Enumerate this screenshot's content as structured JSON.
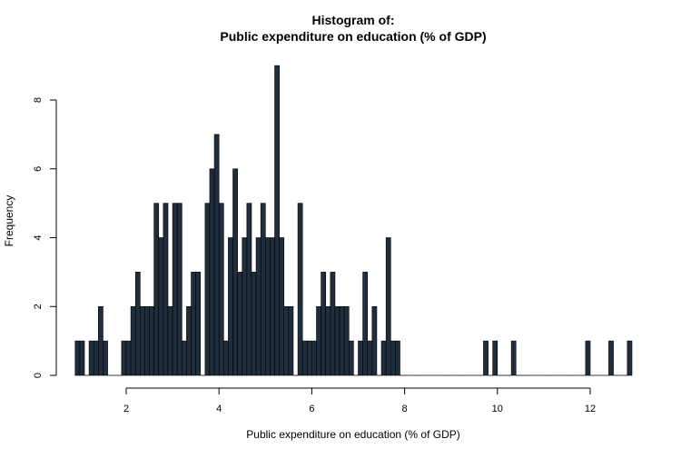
{
  "chart_data": {
    "type": "bar",
    "title_line1": "Histogram of:",
    "title_line2": "Public expenditure on education (% of GDP)",
    "xlabel": "Public expenditure on education (% of GDP)",
    "ylabel": "Frequency",
    "xlim": [
      0.6,
      13.0
    ],
    "ylim": [
      0,
      9
    ],
    "x_ticks": [
      2,
      4,
      6,
      8,
      10,
      12
    ],
    "y_ticks": [
      0,
      2,
      4,
      6,
      8
    ],
    "bin_start": 0.9,
    "bin_width": 0.1,
    "counts": [
      1,
      1,
      0,
      1,
      1,
      2,
      1,
      0,
      0,
      0,
      1,
      1,
      2,
      3,
      2,
      2,
      2,
      5,
      4,
      5,
      2,
      5,
      5,
      1,
      2,
      3,
      3,
      0,
      5,
      6,
      7,
      5,
      1,
      4,
      6,
      3,
      4,
      5,
      3,
      4,
      5,
      4,
      4,
      9,
      4,
      2,
      2,
      0,
      5,
      1,
      1,
      1,
      2,
      3,
      2,
      3,
      2,
      2,
      2,
      1,
      0,
      1,
      3,
      1,
      2,
      0,
      1,
      4,
      1,
      1,
      0,
      0,
      0,
      0,
      0,
      0,
      0,
      0,
      0,
      0,
      0,
      0,
      0,
      0,
      0,
      0,
      0,
      0,
      1,
      0,
      1,
      0,
      0,
      0,
      1,
      0,
      0,
      0,
      0,
      0,
      0,
      0,
      0,
      0,
      0,
      0,
      0,
      0,
      0,
      0,
      1,
      0,
      0,
      0,
      0,
      1,
      0,
      0,
      0,
      1
    ],
    "bar_color": "#1f2d3d",
    "grid": false
  }
}
